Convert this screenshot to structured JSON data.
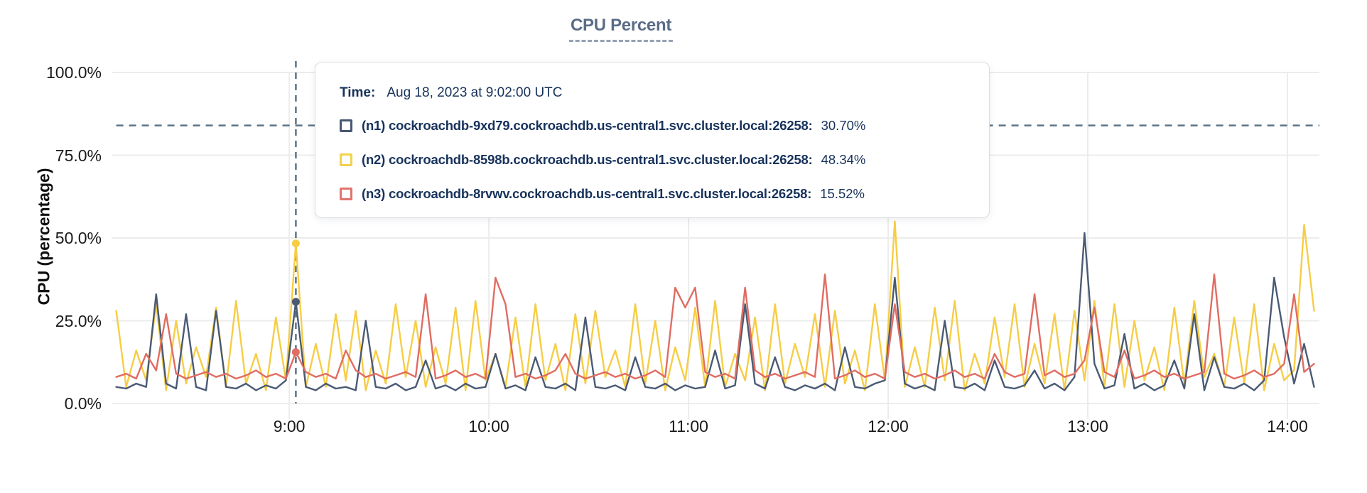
{
  "title": {
    "text": "CPU Percent"
  },
  "tooltip": {
    "time_label": "Time:",
    "time_value": "Aug 18, 2023 at 9:02:00 UTC",
    "series": [
      {
        "label": "(n1) cockroachdb-9xd79.cockroachdb.us-central1.svc.cluster.local:26258:",
        "value": "30.70%",
        "color": "#475872"
      },
      {
        "label": "(n2) cockroachdb-8598b.cockroachdb.us-central1.svc.cluster.local:26258:",
        "value": "48.34%",
        "color": "#f0d24b"
      },
      {
        "label": "(n3) cockroachdb-8rvwv.cockroachdb.us-central1.svc.cluster.local:26258:",
        "value": "15.52%",
        "color": "#e2736e"
      }
    ]
  },
  "colors": {
    "grid": "#ececec",
    "crosshair": "#5b7486",
    "title_text": "#5a6c88",
    "tooltip_text": "#17325b",
    "n1_line": "#4a5a74",
    "n2_line": "#f6cd45",
    "n3_line": "#e06c62"
  },
  "chart_data": {
    "type": "line",
    "title": "CPU Percent",
    "xlabel": "",
    "ylabel": "CPU (percentage)",
    "ylim": [
      0,
      100
    ],
    "grid": true,
    "legend_position": "tooltip",
    "y_ticks": [
      {
        "label": "100.0%",
        "value": 100
      },
      {
        "label": "75.0%",
        "value": 75
      },
      {
        "label": "50.0%",
        "value": 50
      },
      {
        "label": "25.0%",
        "value": 25
      },
      {
        "label": "0.0%",
        "value": 0
      }
    ],
    "x_ticks": [
      {
        "label": "9:00",
        "minute": 540
      },
      {
        "label": "10:00",
        "minute": 600
      },
      {
        "label": "11:00",
        "minute": 660
      },
      {
        "label": "12:00",
        "minute": 720
      },
      {
        "label": "13:00",
        "minute": 780
      },
      {
        "label": "14:00",
        "minute": 840
      }
    ],
    "x_domain_minutes": [
      486.6,
      849.6
    ],
    "start_minute": 488,
    "step_minutes": 3,
    "hover": {
      "minute": 542,
      "time": "Aug 18, 2023 at 9:02:00 UTC",
      "values": [
        30.7,
        48.34,
        15.52
      ],
      "crosshair_y_percent": 84
    },
    "series": [
      {
        "name": "(n1) cockroachdb-9xd79.cockroachdb.us-central1.svc.cluster.local:26258",
        "color": "#4a5a74",
        "values": [
          5,
          4.5,
          6,
          5,
          33,
          6,
          4.5,
          27,
          5,
          4,
          28,
          5,
          4.5,
          6,
          4,
          5.5,
          4.5,
          7,
          30.7,
          5,
          4,
          6,
          4.5,
          5,
          4,
          25,
          5,
          4.5,
          6,
          4,
          5,
          13,
          4.5,
          5.5,
          4,
          6,
          4.5,
          5,
          15,
          4.5,
          5.5,
          4,
          14,
          5,
          4.5,
          6,
          4,
          26,
          5,
          4.5,
          5.5,
          4,
          14,
          5,
          4.5,
          6,
          4,
          5.5,
          4.5,
          5,
          16,
          4.5,
          5.5,
          30,
          6,
          4.5,
          14,
          5,
          4,
          5.5,
          4.5,
          6,
          4,
          17,
          5,
          4.5,
          6,
          7,
          38,
          6,
          4.5,
          5.5,
          4,
          25,
          5,
          4.5,
          6,
          4,
          13,
          5,
          4.5,
          5.5,
          10,
          4.5,
          6,
          4,
          8,
          51.5,
          12,
          4.5,
          5.5,
          21,
          4.5,
          6,
          4,
          5.5,
          13,
          4.5,
          27,
          4,
          14,
          5,
          4.5,
          6,
          4,
          7,
          38,
          20,
          6,
          18,
          5
        ]
      },
      {
        "name": "(n2) cockroachdb-8598b.cockroachdb.us-central1.svc.cluster.local:26258",
        "color": "#f6cd45",
        "values": [
          28,
          5,
          16,
          7,
          30,
          4,
          25,
          6,
          17,
          8,
          29,
          5,
          31,
          6,
          15,
          4,
          26,
          7,
          48.34,
          5,
          18,
          5,
          27,
          7,
          28,
          4,
          16,
          6,
          30,
          8,
          25,
          5,
          17,
          6,
          29,
          4,
          31,
          7,
          15,
          5,
          26,
          5,
          30,
          7,
          18,
          4,
          27,
          6,
          28,
          8,
          16,
          5,
          30,
          6,
          25,
          4,
          17,
          7,
          29,
          5,
          31,
          5,
          15,
          7,
          26,
          4,
          30,
          6,
          18,
          8,
          27,
          5,
          28,
          6,
          16,
          4,
          30,
          7,
          55,
          5,
          17,
          5,
          29,
          7,
          31,
          4,
          15,
          6,
          26,
          8,
          30,
          5,
          18,
          6,
          27,
          4,
          28,
          7,
          31,
          5,
          30,
          5,
          25,
          7,
          17,
          4,
          29,
          6,
          31,
          8,
          15,
          5,
          26,
          6,
          30,
          4,
          18,
          7,
          10,
          54,
          28
        ]
      },
      {
        "name": "(n3) cockroachdb-8rvwv.cockroachdb.us-central1.svc.cluster.local:26258",
        "color": "#e06c62",
        "values": [
          8,
          9,
          7.5,
          15,
          10,
          27,
          9,
          7.5,
          8.5,
          9.5,
          8,
          9,
          7.5,
          8.5,
          10,
          8,
          9,
          7.5,
          15.52,
          9.5,
          8,
          9,
          7.5,
          16,
          10,
          8,
          9,
          7.5,
          8.5,
          9.5,
          8,
          33,
          7.5,
          8.5,
          10,
          8,
          9,
          7.5,
          38,
          30,
          8,
          9,
          7.5,
          8.5,
          10,
          15,
          9,
          7.5,
          8.5,
          9.5,
          8,
          9,
          7.5,
          8.5,
          10,
          8,
          35,
          29,
          35,
          9.5,
          8,
          9,
          7.5,
          35,
          10,
          8,
          9,
          7.5,
          8.5,
          9.5,
          8,
          39,
          7.5,
          8.5,
          10,
          8,
          9,
          7.5,
          30,
          9.5,
          8,
          9,
          7.5,
          8.5,
          10,
          8,
          9,
          7.5,
          15,
          9.5,
          8,
          9,
          33,
          8.5,
          10,
          8,
          9,
          13,
          29,
          9.5,
          8,
          16,
          7.5,
          8.5,
          10,
          8,
          9,
          7.5,
          8.5,
          9.5,
          39,
          9,
          7.5,
          8.5,
          10,
          8,
          9,
          12,
          33,
          9.5,
          12
        ]
      }
    ]
  }
}
